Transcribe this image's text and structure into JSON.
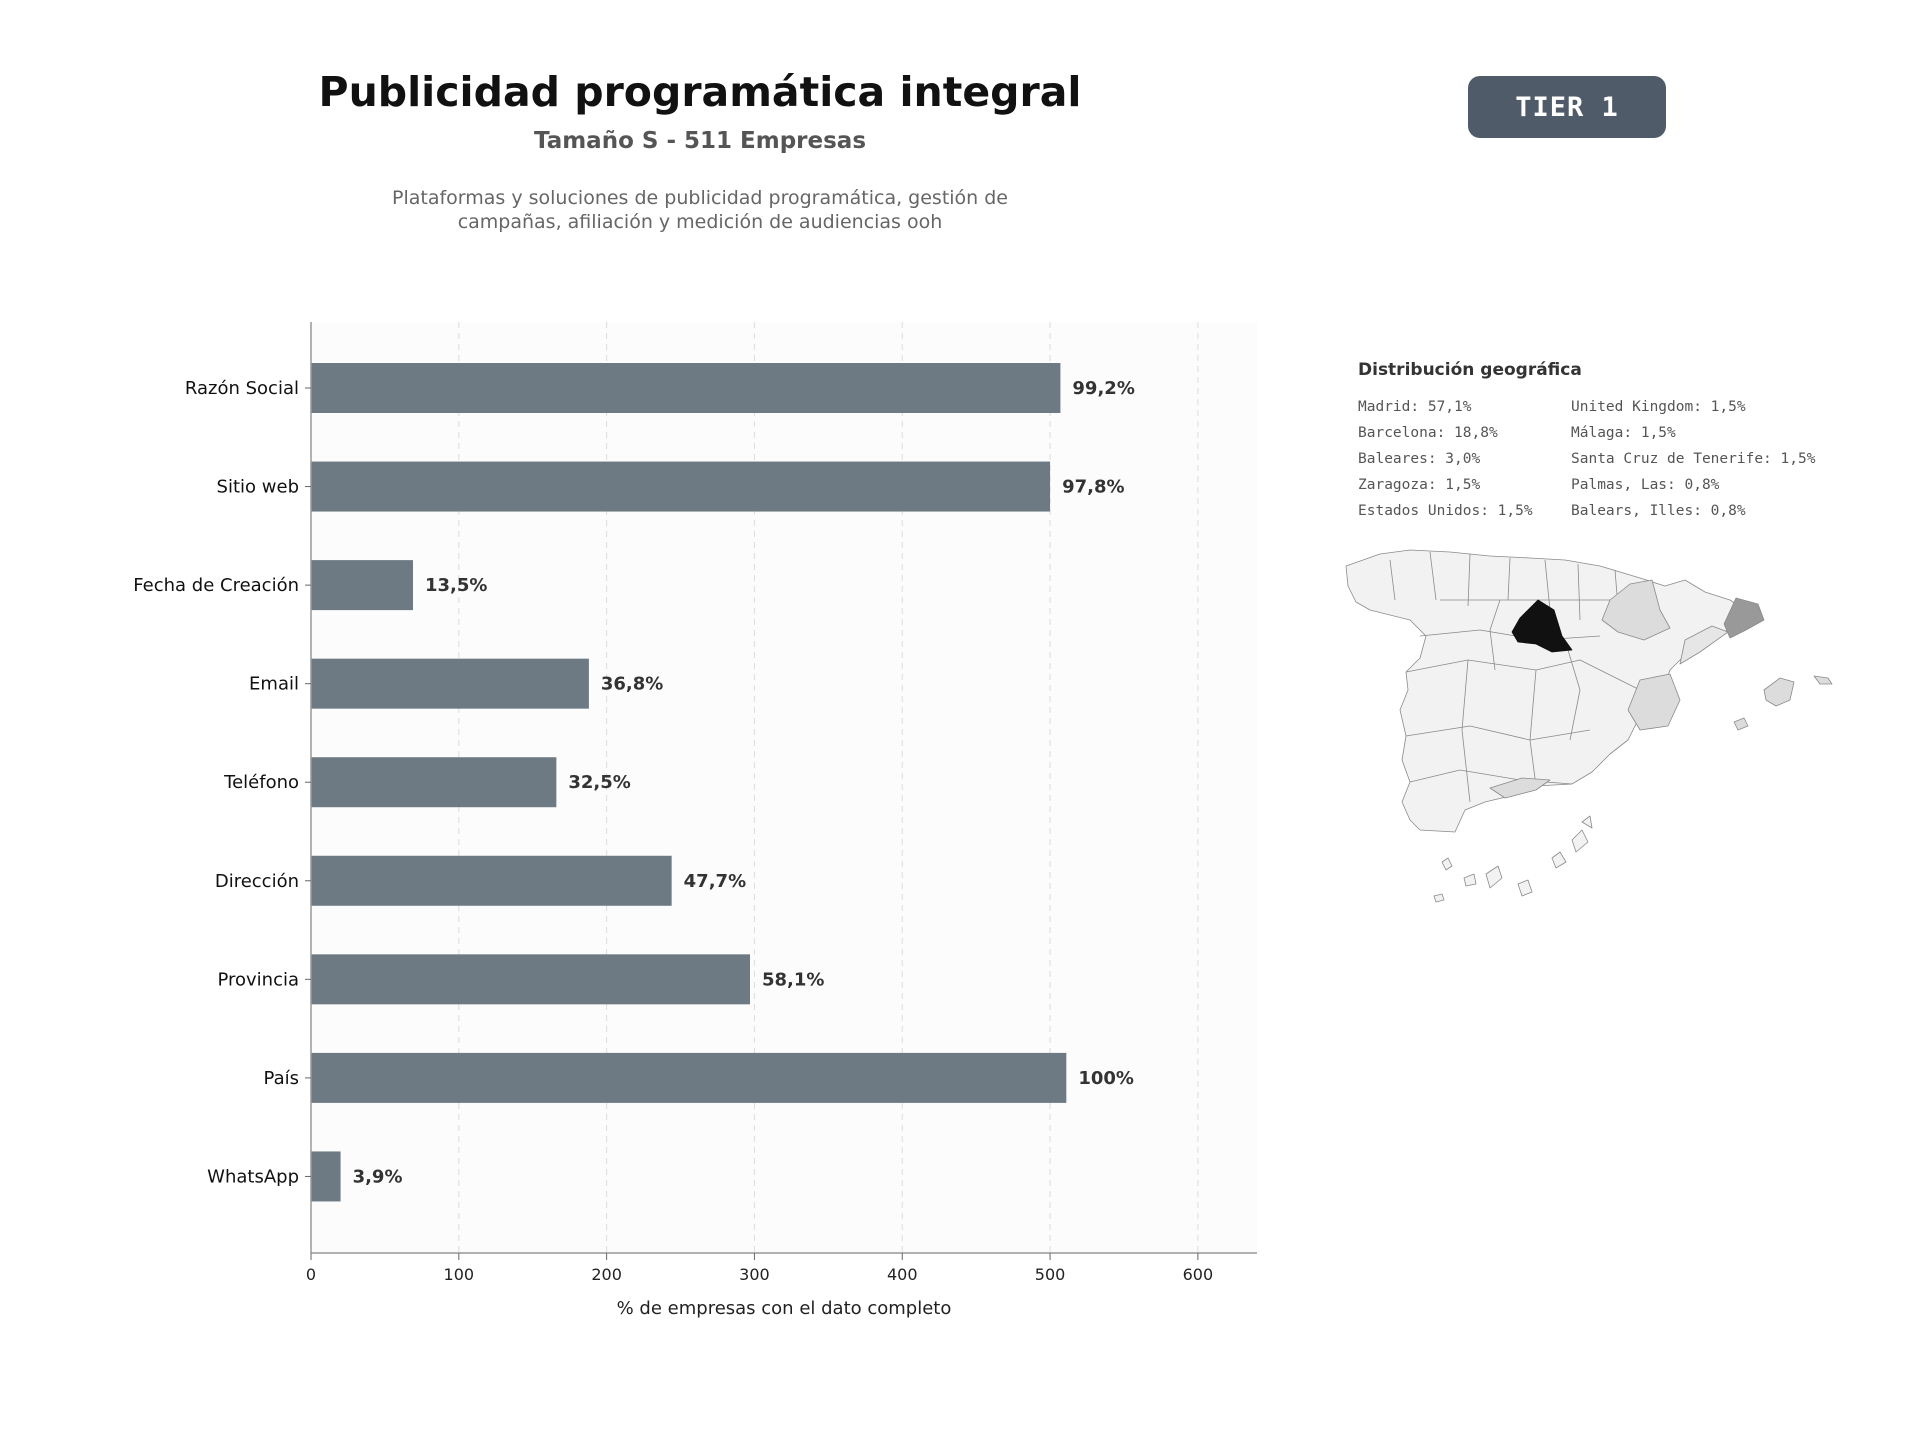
{
  "header": {
    "title": "Publicidad programática integral",
    "subtitle": "Tamaño S - 511 Empresas",
    "description": "Plataformas y soluciones de publicidad programática, gestión de campañas, afiliación y medición de audiencias ooh",
    "badge": "TIER 1"
  },
  "chart_data": {
    "type": "bar",
    "orientation": "horizontal",
    "categories": [
      "Razón Social",
      "Sitio web",
      "Fecha de Creación",
      "Email",
      "Teléfono",
      "Dirección",
      "Provincia",
      "País",
      "WhatsApp"
    ],
    "values": [
      507,
      500,
      69,
      188,
      166,
      244,
      297,
      511,
      20
    ],
    "value_labels": [
      "99,2%",
      "97,8%",
      "13,5%",
      "36,8%",
      "32,5%",
      "47,7%",
      "58,1%",
      "100%",
      "3,9%"
    ],
    "xlabel": "% de empresas con el dato completo",
    "xlim": [
      0,
      640
    ],
    "xticks": [
      "0",
      "100",
      "200",
      "300",
      "400",
      "500",
      "600"
    ],
    "grid": "vertical dashed",
    "bar_color": "#6e7a83"
  },
  "geo": {
    "title": "Distribución geográfica",
    "items": [
      "Madrid: 57,1%",
      "United Kingdom: 1,5%",
      "Barcelona: 18,8%",
      "Málaga: 1,5%",
      "Baleares: 3,0%",
      "Santa Cruz de Tenerife: 1,5%",
      "Zaragoza: 1,5%",
      "Palmas, Las: 0,8%",
      "Estados Unidos: 1,5%",
      "Balears, Illes: 0,8%"
    ],
    "highlight_colors": {
      "madrid": "#111111",
      "barcelona": "#999999",
      "secondary": "#dcdcdc",
      "base": "#f2f2f2",
      "stroke": "#888888"
    }
  }
}
